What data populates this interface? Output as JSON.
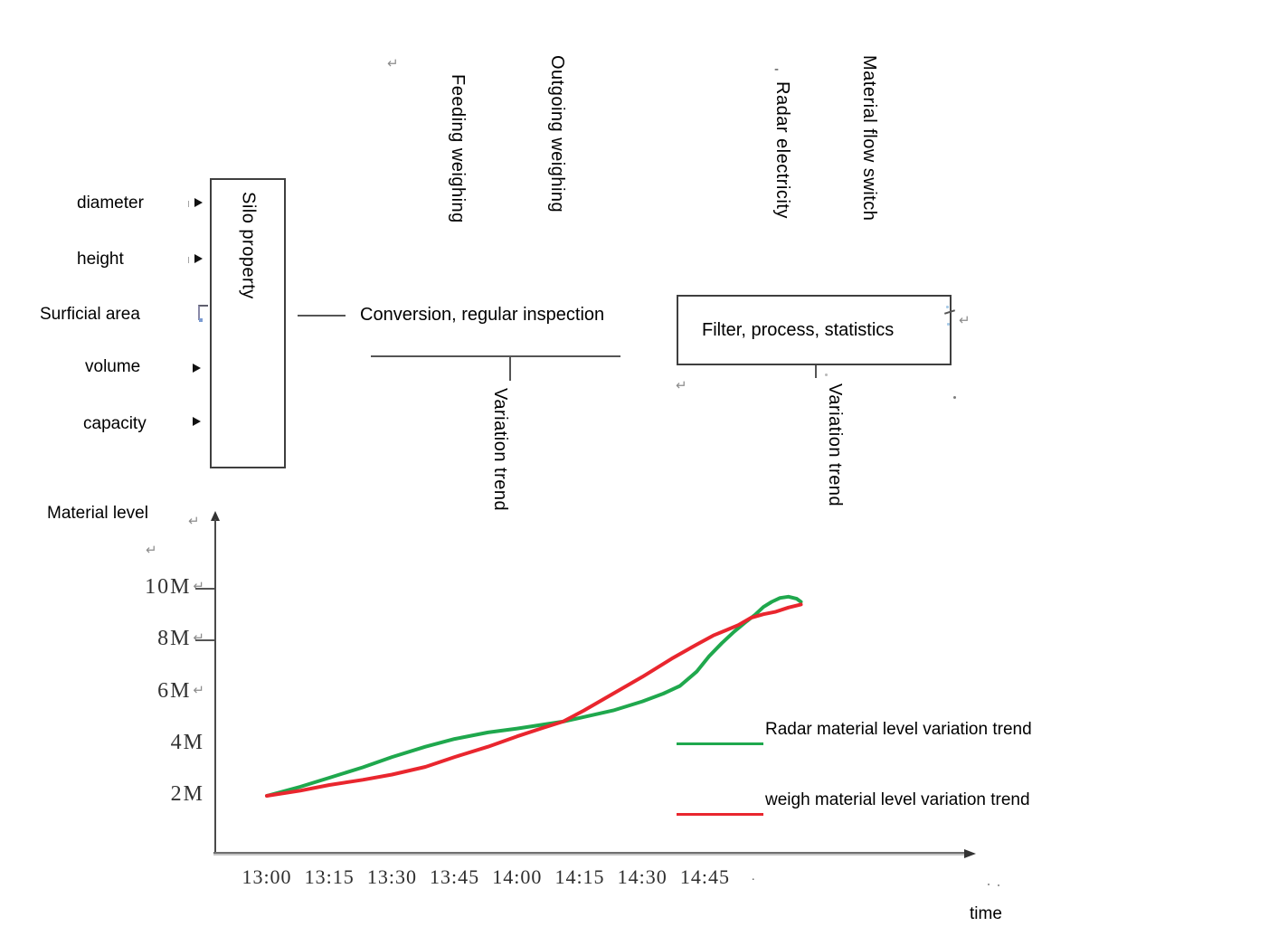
{
  "diagram": {
    "inputs": [
      {
        "label": "diameter"
      },
      {
        "label": "height"
      },
      {
        "label": "Surficial area"
      },
      {
        "label": "volume"
      },
      {
        "label": "capacity"
      }
    ],
    "silo_box_label": "Silo property",
    "vertical_labels": {
      "feeding": "Feeding weighing",
      "outgoing": "Outgoing weighing",
      "radar": "Radar electricity",
      "radar_prefix_dash": "-",
      "material_flow": "Material flow switch"
    },
    "conversion_label": "Conversion, regular inspection",
    "filter_box_label": "Filter, process, statistics",
    "variation_trend_left": "Variation trend",
    "variation_trend_right": "Variation trend",
    "return_mark_glyph": "↵",
    "stray_period": "."
  },
  "chart_data": {
    "type": "line",
    "title": "",
    "ylabel": "Material level",
    "xlabel": "time",
    "x_ticks": [
      "13:00",
      "13:15",
      "13:30",
      "13:45",
      "14:00",
      "14:15",
      "14:30",
      "14:45"
    ],
    "x_trailing_mark": ".",
    "x_tick_interval_minutes": 15,
    "y_ticks": [
      {
        "value": 10,
        "label": "10M",
        "return_mark": true,
        "tick_dash": true
      },
      {
        "value": 8,
        "label": "8M",
        "return_mark": true,
        "tick_dash": true
      },
      {
        "value": 6,
        "label": "6M",
        "return_mark": true,
        "tick_dash": false
      },
      {
        "value": 4,
        "label": "4M",
        "return_mark": false,
        "tick_dash": false
      },
      {
        "value": 2,
        "label": "2M",
        "return_mark": false,
        "tick_dash": false
      }
    ],
    "ylim": [
      0,
      11
    ],
    "grid": false,
    "legend_position": "inside-right-middle",
    "series": [
      {
        "name": "Radar material level variation trend",
        "color": "#1fa84d",
        "points_minutes_vs_level_m": [
          [
            0,
            2.0
          ],
          [
            8,
            2.35
          ],
          [
            15,
            2.7
          ],
          [
            23,
            3.1
          ],
          [
            30,
            3.5
          ],
          [
            38,
            3.9
          ],
          [
            45,
            4.2
          ],
          [
            53,
            4.45
          ],
          [
            60,
            4.6
          ],
          [
            66,
            4.75
          ],
          [
            71,
            4.87
          ],
          [
            76,
            5.05
          ],
          [
            83,
            5.3
          ],
          [
            90,
            5.65
          ],
          [
            95,
            5.95
          ],
          [
            99,
            6.25
          ],
          [
            103,
            6.8
          ],
          [
            106,
            7.4
          ],
          [
            109,
            7.9
          ],
          [
            112,
            8.35
          ],
          [
            115,
            8.75
          ],
          [
            117,
            9.0
          ],
          [
            119,
            9.3
          ],
          [
            121,
            9.5
          ],
          [
            123,
            9.65
          ],
          [
            125,
            9.7
          ],
          [
            127,
            9.62
          ],
          [
            128,
            9.5
          ]
        ]
      },
      {
        "name": "weigh material level variation trend",
        "color": "#e9262e",
        "points_minutes_vs_level_m": [
          [
            0,
            2.0
          ],
          [
            8,
            2.2
          ],
          [
            15,
            2.42
          ],
          [
            23,
            2.62
          ],
          [
            30,
            2.82
          ],
          [
            38,
            3.12
          ],
          [
            45,
            3.5
          ],
          [
            53,
            3.9
          ],
          [
            60,
            4.3
          ],
          [
            66,
            4.62
          ],
          [
            71,
            4.87
          ],
          [
            76,
            5.3
          ],
          [
            83,
            5.95
          ],
          [
            90,
            6.6
          ],
          [
            97,
            7.3
          ],
          [
            103,
            7.85
          ],
          [
            107,
            8.2
          ],
          [
            110,
            8.4
          ],
          [
            113,
            8.6
          ],
          [
            116,
            8.88
          ],
          [
            119,
            9.02
          ],
          [
            122,
            9.12
          ],
          [
            125,
            9.28
          ],
          [
            128,
            9.4
          ]
        ]
      }
    ]
  }
}
